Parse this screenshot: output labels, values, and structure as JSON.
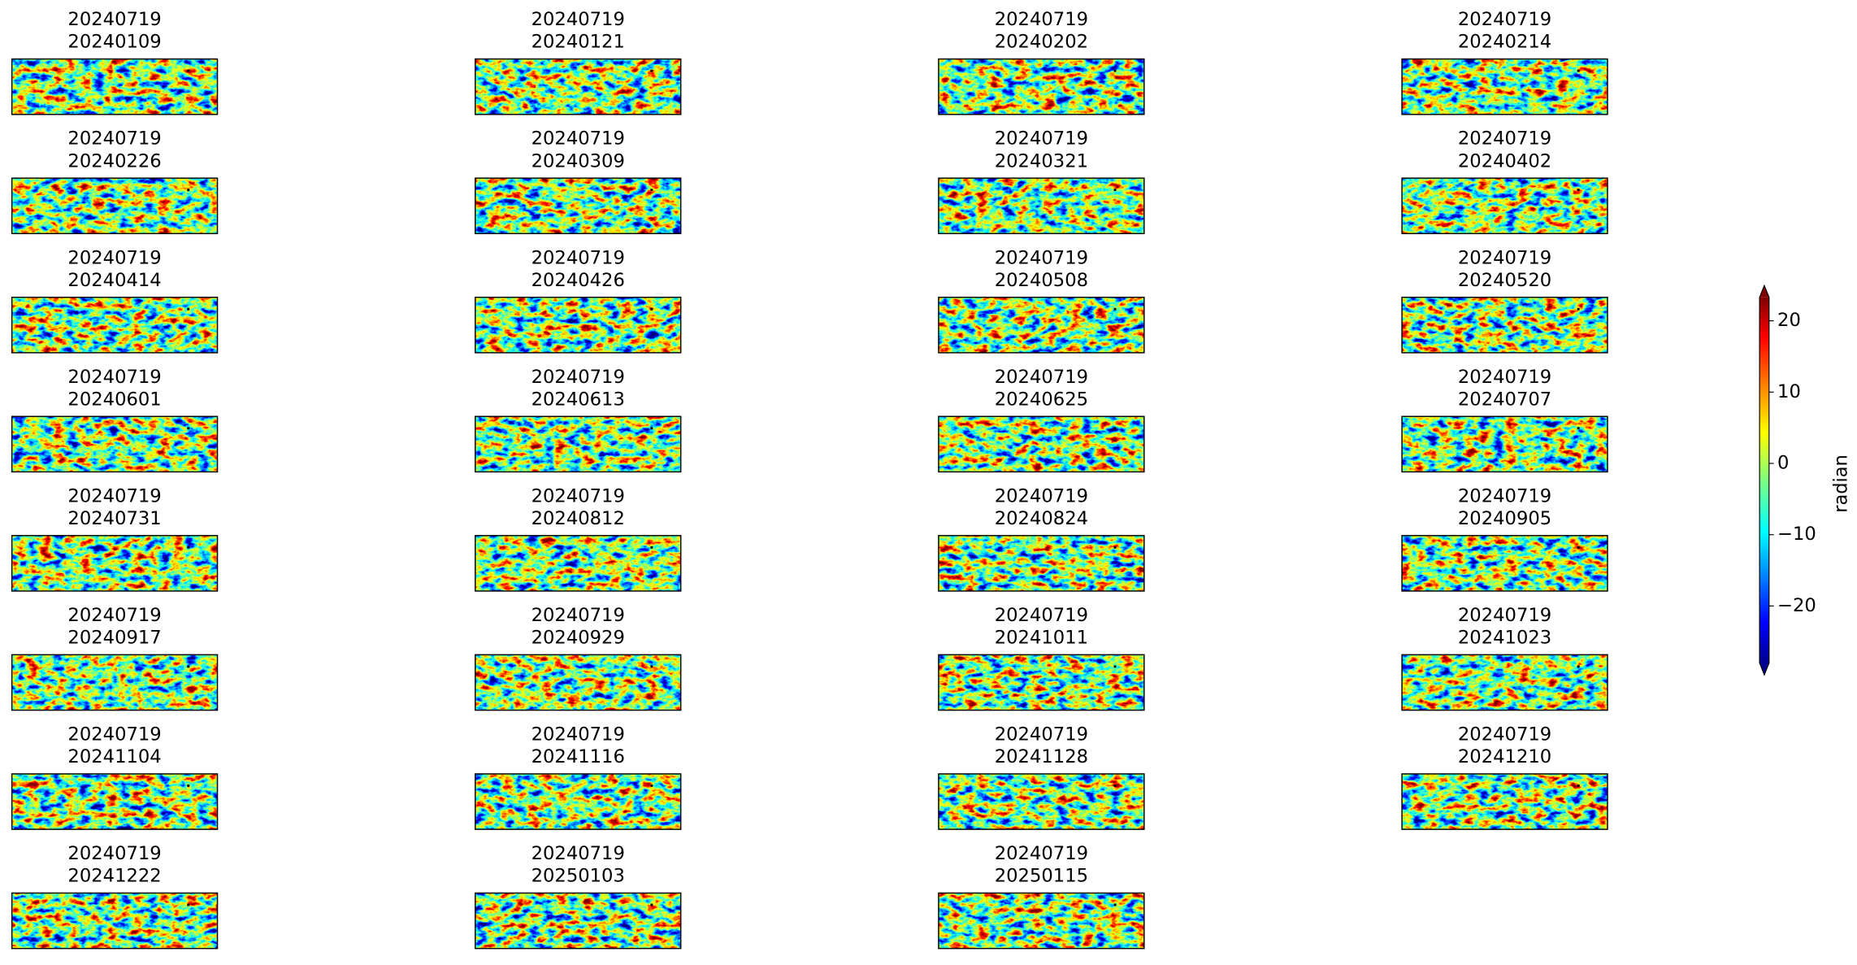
{
  "panels": [
    {
      "reference": "20240719",
      "secondary": "20240109"
    },
    {
      "reference": "20240719",
      "secondary": "20240121"
    },
    {
      "reference": "20240719",
      "secondary": "20240202"
    },
    {
      "reference": "20240719",
      "secondary": "20240214"
    },
    {
      "reference": "20240719",
      "secondary": "20240226"
    },
    {
      "reference": "20240719",
      "secondary": "20240309"
    },
    {
      "reference": "20240719",
      "secondary": "20240321"
    },
    {
      "reference": "20240719",
      "secondary": "20240402"
    },
    {
      "reference": "20240719",
      "secondary": "20240414"
    },
    {
      "reference": "20240719",
      "secondary": "20240426"
    },
    {
      "reference": "20240719",
      "secondary": "20240508"
    },
    {
      "reference": "20240719",
      "secondary": "20240520"
    },
    {
      "reference": "20240719",
      "secondary": "20240601"
    },
    {
      "reference": "20240719",
      "secondary": "20240613"
    },
    {
      "reference": "20240719",
      "secondary": "20240625"
    },
    {
      "reference": "20240719",
      "secondary": "20240707"
    },
    {
      "reference": "20240719",
      "secondary": "20240731"
    },
    {
      "reference": "20240719",
      "secondary": "20240812"
    },
    {
      "reference": "20240719",
      "secondary": "20240824"
    },
    {
      "reference": "20240719",
      "secondary": "20240905"
    },
    {
      "reference": "20240719",
      "secondary": "20240917"
    },
    {
      "reference": "20240719",
      "secondary": "20240929"
    },
    {
      "reference": "20240719",
      "secondary": "20241011"
    },
    {
      "reference": "20240719",
      "secondary": "20241023"
    },
    {
      "reference": "20240719",
      "secondary": "20241104"
    },
    {
      "reference": "20240719",
      "secondary": "20241116"
    },
    {
      "reference": "20240719",
      "secondary": "20241128"
    },
    {
      "reference": "20240719",
      "secondary": "20241210"
    },
    {
      "reference": "20240719",
      "secondary": "20241222"
    },
    {
      "reference": "20240719",
      "secondary": "20250103"
    },
    {
      "reference": "20240719",
      "secondary": "20250115"
    }
  ],
  "colorbar": {
    "label": "radian",
    "lim": [
      -28,
      23.3
    ],
    "ticks": [
      20,
      10,
      0,
      {
        "value": -10,
        "label": "−10"
      },
      {
        "value": -20,
        "label": "−20"
      }
    ]
  }
}
